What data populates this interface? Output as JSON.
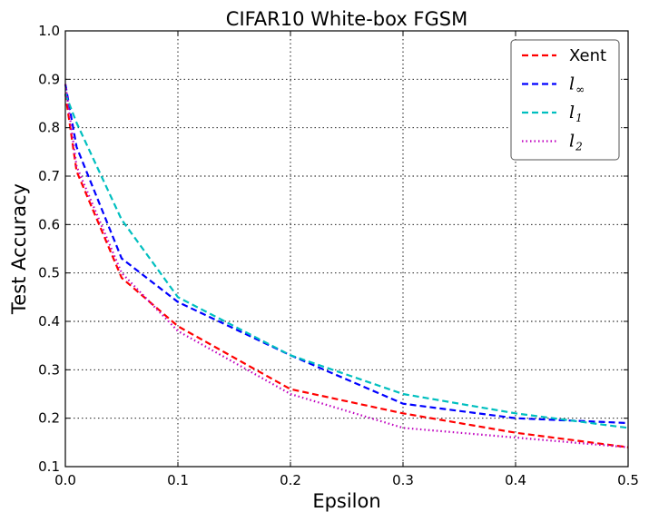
{
  "chart_data": {
    "type": "line",
    "title": "CIFAR10 White-box FGSM",
    "xlabel": "Epsilon",
    "ylabel": "Test Accuracy",
    "xlim": [
      0.0,
      0.5
    ],
    "ylim": [
      0.1,
      1.0
    ],
    "xticks": [
      0.0,
      0.1,
      0.2,
      0.3,
      0.4,
      0.5
    ],
    "xtick_labels": [
      "0.0",
      "0.1",
      "0.2",
      "0.3",
      "0.4",
      "0.5"
    ],
    "yticks": [
      0.1,
      0.2,
      0.3,
      0.4,
      0.5,
      0.6,
      0.7,
      0.8,
      0.9,
      1.0
    ],
    "ytick_labels": [
      "0.1",
      "0.2",
      "0.3",
      "0.4",
      "0.5",
      "0.6",
      "0.7",
      "0.8",
      "0.9",
      "1.0"
    ],
    "grid": true,
    "legend_position": "top-right",
    "x": [
      0.0,
      0.01,
      0.05,
      0.1,
      0.2,
      0.3,
      0.4,
      0.5
    ],
    "series": [
      {
        "name": "Xent",
        "color": "#ff0000",
        "style": "dashed",
        "label_math": false,
        "values": [
          0.87,
          0.71,
          0.49,
          0.39,
          0.26,
          0.21,
          0.17,
          0.14
        ]
      },
      {
        "name": "l∞",
        "base": "l",
        "sub": "∞",
        "color": "#0000ff",
        "style": "dashed",
        "label_math": true,
        "values": [
          0.89,
          0.76,
          0.53,
          0.44,
          0.33,
          0.23,
          0.2,
          0.19
        ]
      },
      {
        "name": "l1",
        "base": "l",
        "sub": "1",
        "color": "#00bfbf",
        "style": "dashed",
        "label_math": true,
        "values": [
          0.87,
          0.81,
          0.61,
          0.45,
          0.33,
          0.25,
          0.21,
          0.18
        ]
      },
      {
        "name": "l2",
        "base": "l",
        "sub": "2",
        "color": "#bf00bf",
        "style": "dotted",
        "label_math": true,
        "values": [
          0.89,
          0.72,
          0.5,
          0.38,
          0.25,
          0.18,
          0.16,
          0.14
        ]
      }
    ]
  }
}
